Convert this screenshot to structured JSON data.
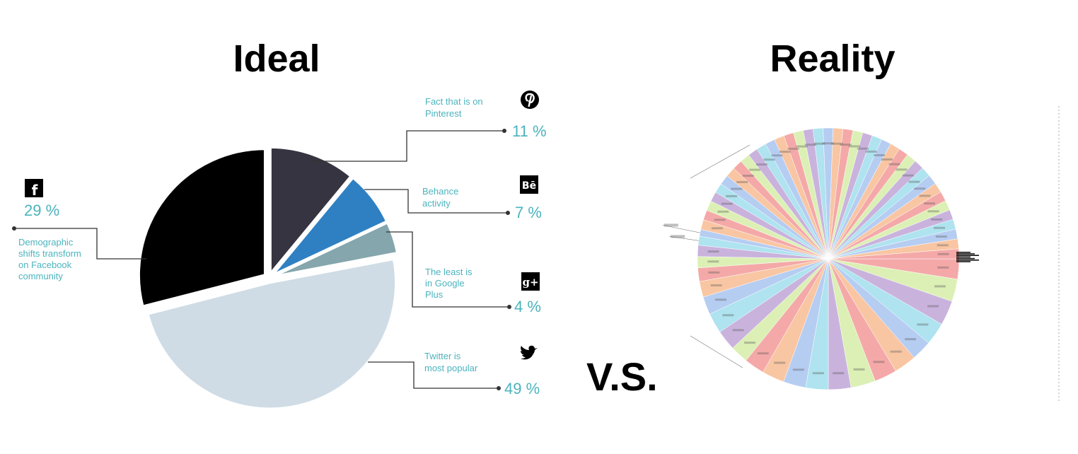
{
  "titles": {
    "ideal": "Ideal",
    "reality": "Reality",
    "versus": "V.S."
  },
  "colors": {
    "accent": "#4bb3bd",
    "leader": "#333333"
  },
  "chart_data": [
    {
      "type": "pie",
      "title": "Ideal",
      "slices": [
        {
          "name": "Pinterest",
          "value": 11,
          "label": "11 %",
          "description": [
            "Fact that is on",
            "Pinterest"
          ],
          "color": "#363440",
          "icon": "pinterest-icon"
        },
        {
          "name": "Behance",
          "value": 7,
          "label": "7 %",
          "description": [
            "Behance",
            "activity"
          ],
          "color": "#2f80c2",
          "icon": "behance-icon",
          "icon_text": "Bē"
        },
        {
          "name": "Google Plus",
          "value": 4,
          "label": "4 %",
          "description": [
            "The least is",
            "in Google",
            "Plus"
          ],
          "color": "#84a6ac",
          "icon": "google-plus-icon",
          "icon_text": "g+"
        },
        {
          "name": "Twitter",
          "value": 49,
          "label": "49 %",
          "description": [
            "Twitter is",
            "most popular"
          ],
          "color": "#cfdce5",
          "icon": "twitter-icon"
        },
        {
          "name": "Facebook",
          "value": 29,
          "label": "29 %",
          "description": [
            "Demographic",
            "shifts transform",
            "on Facebook",
            "community"
          ],
          "color": "#000000",
          "icon": "facebook-icon",
          "icon_text": "f"
        }
      ]
    },
    {
      "type": "pie",
      "title": "Reality",
      "palette": [
        "#f4a9a8",
        "#dcf0b5",
        "#c9b3dd",
        "#aee3ef",
        "#b6cdf2",
        "#f9c6a3"
      ],
      "note": "Large pie with dozens of tiny unreadable slice labels (legibility not preserved)"
    }
  ]
}
